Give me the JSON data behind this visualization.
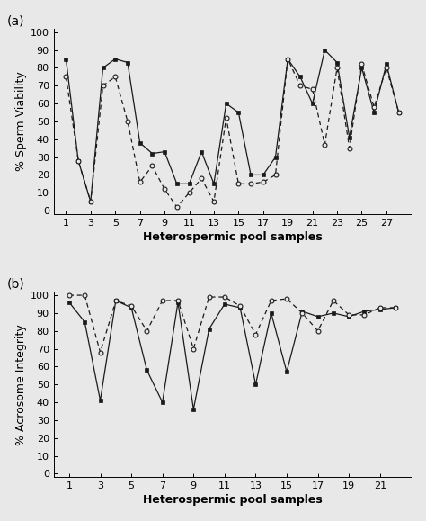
{
  "panel_a": {
    "title": "(a)",
    "ylabel": "% Sperm Viability",
    "xlabel": "Heterospermic pool samples",
    "xticks": [
      1,
      3,
      5,
      7,
      9,
      11,
      13,
      15,
      17,
      19,
      21,
      23,
      25,
      27
    ],
    "yticks": [
      0,
      10,
      20,
      30,
      40,
      50,
      60,
      70,
      80,
      90,
      100
    ],
    "ylim": [
      -2,
      102
    ],
    "xlim": [
      0,
      29
    ],
    "solid_line": {
      "x": [
        1,
        2,
        3,
        4,
        5,
        6,
        7,
        8,
        9,
        10,
        11,
        12,
        13,
        14,
        15,
        16,
        17,
        18,
        19,
        20,
        21,
        22,
        23,
        24,
        25,
        26,
        27,
        28
      ],
      "y": [
        85,
        28,
        5,
        80,
        85,
        83,
        38,
        32,
        33,
        15,
        15,
        33,
        15,
        60,
        55,
        20,
        20,
        30,
        85,
        75,
        60,
        90,
        83,
        41,
        80,
        55,
        82,
        55
      ]
    },
    "dashed_line": {
      "x": [
        1,
        2,
        3,
        4,
        5,
        6,
        7,
        8,
        9,
        10,
        11,
        12,
        13,
        14,
        15,
        16,
        17,
        18,
        19,
        20,
        21,
        22,
        23,
        24,
        25,
        26,
        27,
        28
      ],
      "y": [
        75,
        28,
        5,
        70,
        75,
        50,
        16,
        25,
        12,
        2,
        10,
        18,
        5,
        52,
        15,
        15,
        16,
        20,
        85,
        70,
        68,
        37,
        80,
        35,
        82,
        58,
        80,
        55
      ]
    }
  },
  "panel_b": {
    "title": "(b)",
    "ylabel": "% Acrosome Integrity",
    "xlabel": "Heterospermic pool samples",
    "xticks": [
      1,
      3,
      5,
      7,
      9,
      11,
      13,
      15,
      17,
      19,
      21
    ],
    "yticks": [
      0,
      10,
      20,
      30,
      40,
      50,
      60,
      70,
      80,
      90,
      100
    ],
    "ylim": [
      -2,
      102
    ],
    "xlim": [
      0,
      23
    ],
    "solid_line": {
      "x": [
        1,
        2,
        3,
        4,
        5,
        6,
        7,
        8,
        9,
        10,
        11,
        12,
        13,
        14,
        15,
        16,
        17,
        18,
        19,
        20,
        21,
        22
      ],
      "y": [
        96,
        85,
        41,
        97,
        93,
        58,
        40,
        96,
        36,
        81,
        95,
        93,
        50,
        90,
        57,
        91,
        88,
        90,
        88,
        91,
        92,
        93
      ]
    },
    "dashed_line": {
      "x": [
        1,
        2,
        3,
        4,
        5,
        6,
        7,
        8,
        9,
        10,
        11,
        12,
        13,
        14,
        15,
        16,
        17,
        18,
        19,
        20,
        21,
        22
      ],
      "y": [
        100,
        100,
        68,
        97,
        94,
        80,
        97,
        97,
        70,
        99,
        99,
        94,
        78,
        97,
        98,
        90,
        80,
        97,
        89,
        89,
        93,
        93
      ]
    }
  },
  "line_color": "#1a1a1a",
  "marker_solid": "s",
  "marker_dashed": "o",
  "markersize": 3.5,
  "linewidth": 0.9,
  "font_size_label": 9,
  "font_size_tick": 8,
  "font_size_title": 10,
  "bg_color": "#e8e8e8"
}
